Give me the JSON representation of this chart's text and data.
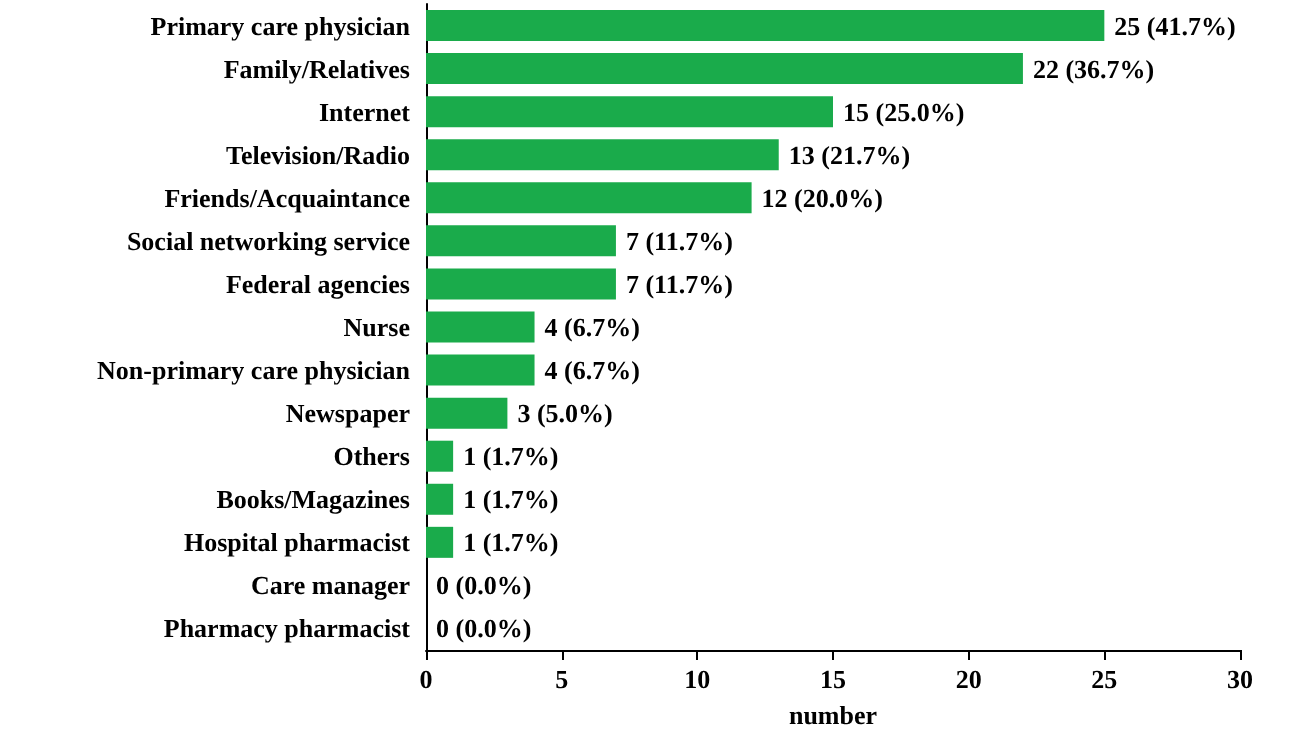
{
  "chart_data": {
    "type": "bar",
    "orientation": "horizontal",
    "xlabel": "number",
    "categories": [
      "Primary care physician",
      "Family/Relatives",
      "Internet",
      "Television/Radio",
      "Friends/Acquaintance",
      "Social networking service",
      "Federal agencies",
      "Nurse",
      "Non-primary care physician",
      "Newspaper",
      "Others",
      "Books/Magazines",
      "Hospital pharmacist",
      "Care manager",
      "Pharmacy pharmacist"
    ],
    "values": [
      25,
      22,
      15,
      13,
      12,
      7,
      7,
      4,
      4,
      3,
      1,
      1,
      1,
      0,
      0
    ],
    "value_labels": [
      "25 (41.7%)",
      "22 (36.7%)",
      "15 (25.0%)",
      "13 (21.7%)",
      "12 (20.0%)",
      "7 (11.7%)",
      "7 (11.7%)",
      "4 (6.7%)",
      "4 (6.7%)",
      "3 (5.0%)",
      "1 (1.7%)",
      "1 (1.7%)",
      "1 (1.7%)",
      "0 (0.0%)",
      "0 (0.0%)"
    ],
    "color": "#1aab4b",
    "xlim": [
      0,
      30
    ],
    "xticks": [
      0,
      5,
      10,
      15,
      20,
      25,
      30
    ],
    "grid": false
  }
}
